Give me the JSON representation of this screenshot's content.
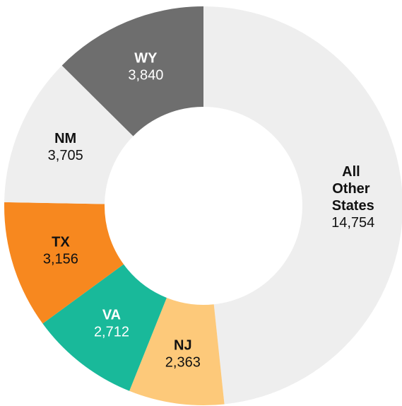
{
  "chart_data": {
    "type": "donut",
    "categories": [
      "All Other States",
      "NJ",
      "VA",
      "TX",
      "NM",
      "WY"
    ],
    "values": [
      14754,
      2363,
      2712,
      3156,
      3705,
      3840
    ],
    "value_labels": [
      "14,754",
      "2,363",
      "2,712",
      "3,156",
      "3,705",
      "3,840"
    ],
    "colors": [
      "#eeeeee",
      "#fdc97a",
      "#19b99a",
      "#f7881f",
      "#eeeeee",
      "#6e6e6e"
    ]
  }
}
